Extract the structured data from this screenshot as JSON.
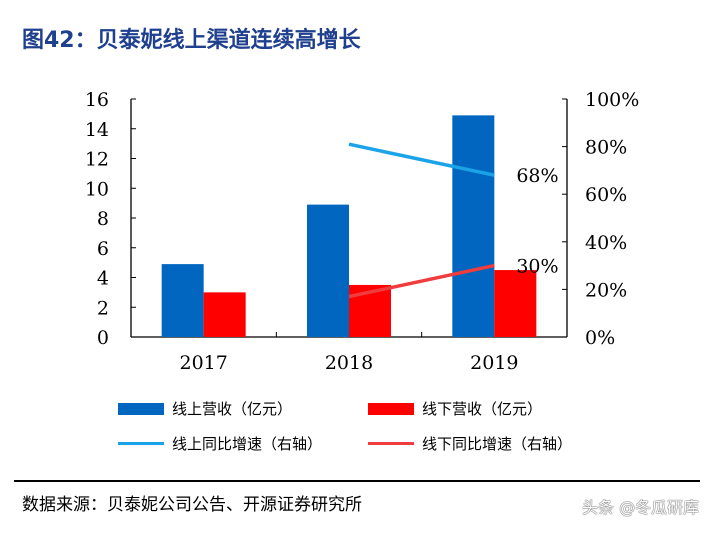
{
  "title": "图42：贝泰妮线上渠道连续高增长",
  "source": "数据来源：贝泰妮公司公告、开源证券研究所",
  "watermark": "头条 @冬瓜研库",
  "chart_data": {
    "type": "bar+line",
    "categories": [
      "2017",
      "2018",
      "2019"
    ],
    "left_axis": {
      "ylim": [
        0,
        16
      ],
      "ticks": [
        "0",
        "2",
        "4",
        "6",
        "8",
        "10",
        "12",
        "14",
        "16"
      ]
    },
    "right_axis": {
      "ylim": [
        0,
        100
      ],
      "ticks": [
        "0%",
        "20%",
        "40%",
        "60%",
        "80%",
        "100%"
      ]
    },
    "series": [
      {
        "name": "线上营收（亿元）",
        "type": "bar",
        "axis": "left",
        "color": "#0066c0",
        "values": [
          4.9,
          8.9,
          14.9
        ]
      },
      {
        "name": "线下营收（亿元）",
        "type": "bar",
        "axis": "left",
        "color": "#ff0000",
        "values": [
          3.0,
          3.5,
          4.5
        ]
      },
      {
        "name": "线上同比增速（右轴）",
        "type": "line",
        "axis": "right",
        "color": "#1aa3e8",
        "values": [
          null,
          81,
          68
        ],
        "labels": [
          null,
          null,
          "68%"
        ]
      },
      {
        "name": "线下同比增速（右轴）",
        "type": "line",
        "axis": "right",
        "color": "#f03c3c",
        "values": [
          null,
          17,
          30
        ],
        "labels": [
          null,
          null,
          "30%"
        ]
      }
    ],
    "legend_position": "bottom",
    "grid": false
  }
}
